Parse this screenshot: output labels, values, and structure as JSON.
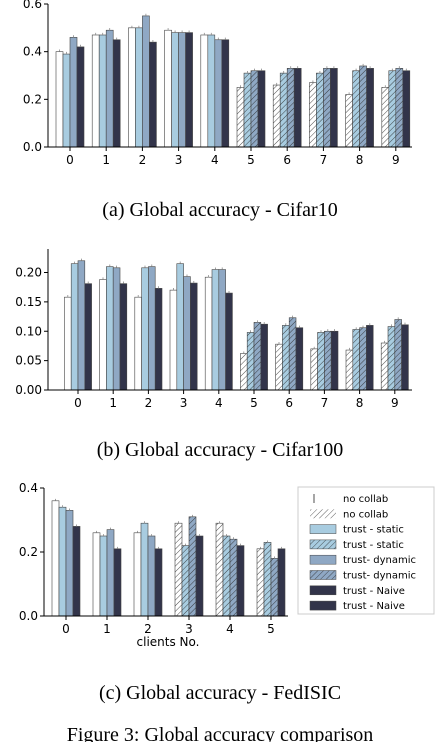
{
  "captions": {
    "a": "(a) Global accuracy - Cifar10",
    "b": "(b) Global accuracy - Cifar100",
    "c": "(c) Global accuracy - FedISIC",
    "figure": "Figure 3: Global accuracy comparison"
  },
  "legend": [
    "no collab",
    "no collab",
    "trust - static",
    "trust - static",
    "trust- dynamic",
    "trust- dynamic",
    "trust - Naive",
    "trust - Naive"
  ],
  "colors": {
    "white": "#ffffff",
    "light_blue": "#a8cce0",
    "mid_blue": "#8fa8c4",
    "dark_navy": "#32344a",
    "edge": "#444444"
  },
  "chart_data": [
    {
      "type": "bar",
      "title": "",
      "xlabel": "",
      "ylabel": "",
      "categories": [
        "0",
        "1",
        "2",
        "3",
        "4",
        "5",
        "6",
        "7",
        "8",
        "9"
      ],
      "ylim": [
        0,
        0.6
      ],
      "yticks": [
        "0.0",
        "0.2",
        "0.4",
        "0.6"
      ],
      "hatched_categories": [
        "5",
        "6",
        "7",
        "8",
        "9"
      ],
      "series": [
        {
          "values": [
            0.4,
            0.47,
            0.5,
            0.49,
            0.47,
            0.25,
            0.26,
            0.27,
            0.22,
            0.25
          ]
        },
        {
          "values": [
            0.39,
            0.47,
            0.5,
            0.48,
            0.47,
            0.31,
            0.31,
            0.31,
            0.32,
            0.32
          ]
        },
        {
          "values": [
            0.46,
            0.49,
            0.55,
            0.48,
            0.45,
            0.32,
            0.33,
            0.33,
            0.34,
            0.33
          ]
        },
        {
          "values": [
            0.42,
            0.45,
            0.44,
            0.48,
            0.45,
            0.32,
            0.33,
            0.33,
            0.33,
            0.32
          ]
        }
      ]
    },
    {
      "type": "bar",
      "title": "",
      "xlabel": "",
      "ylabel": "",
      "categories": [
        "0",
        "1",
        "2",
        "3",
        "4",
        "5",
        "6",
        "7",
        "8",
        "9"
      ],
      "ylim": [
        0,
        0.24
      ],
      "yticks": [
        "0.00",
        "0.05",
        "0.10",
        "0.15",
        "0.20"
      ],
      "hatched_categories": [
        "5",
        "6",
        "7",
        "8",
        "9"
      ],
      "series": [
        {
          "values": [
            0.158,
            0.188,
            0.158,
            0.17,
            0.192,
            0.062,
            0.078,
            0.07,
            0.068,
            0.08
          ]
        },
        {
          "values": [
            0.215,
            0.21,
            0.208,
            0.215,
            0.205,
            0.098,
            0.11,
            0.098,
            0.103,
            0.108
          ]
        },
        {
          "values": [
            0.22,
            0.208,
            0.21,
            0.193,
            0.205,
            0.115,
            0.123,
            0.1,
            0.106,
            0.12
          ]
        },
        {
          "values": [
            0.181,
            0.181,
            0.173,
            0.182,
            0.165,
            0.112,
            0.106,
            0.1,
            0.11,
            0.111
          ]
        }
      ]
    },
    {
      "type": "bar",
      "title": "",
      "xlabel": "clients No.",
      "ylabel": "",
      "categories": [
        "0",
        "1",
        "2",
        "3",
        "4",
        "5"
      ],
      "ylim": [
        0,
        0.4
      ],
      "yticks": [
        "0.0",
        "0.2",
        "0.4"
      ],
      "hatched_categories": [
        "3",
        "4",
        "5"
      ],
      "series": [
        {
          "values": [
            0.36,
            0.26,
            0.26,
            0.29,
            0.29,
            0.21
          ]
        },
        {
          "values": [
            0.34,
            0.25,
            0.29,
            0.22,
            0.25,
            0.23
          ]
        },
        {
          "values": [
            0.33,
            0.27,
            0.25,
            0.31,
            0.24,
            0.18
          ]
        },
        {
          "values": [
            0.28,
            0.21,
            0.21,
            0.25,
            0.22,
            0.21
          ]
        }
      ]
    }
  ]
}
